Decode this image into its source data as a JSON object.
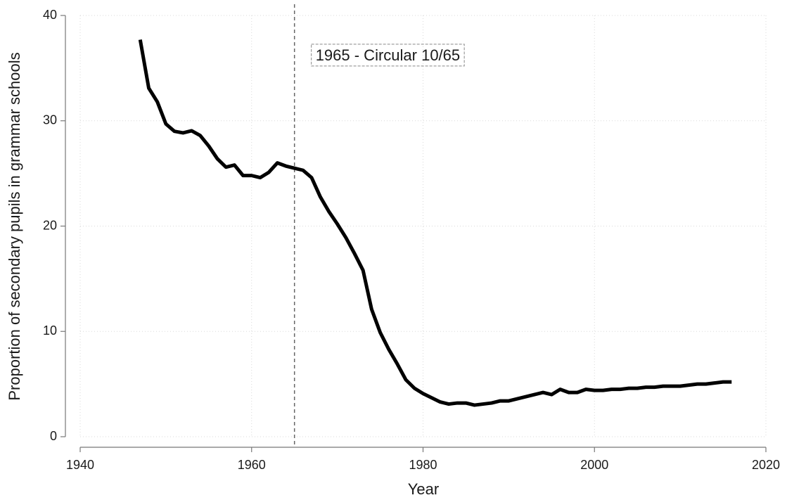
{
  "chart_data": {
    "type": "line",
    "x_label": "Year",
    "y_label": "Proportion of secondary pupils in grammar schools",
    "x": [
      1947,
      1948,
      1949,
      1950,
      1951,
      1952,
      1953,
      1954,
      1955,
      1956,
      1957,
      1958,
      1959,
      1960,
      1961,
      1962,
      1963,
      1964,
      1965,
      1966,
      1967,
      1968,
      1969,
      1970,
      1971,
      1972,
      1973,
      1974,
      1975,
      1976,
      1977,
      1978,
      1979,
      1980,
      1981,
      1982,
      1983,
      1984,
      1985,
      1986,
      1987,
      1988,
      1989,
      1990,
      1991,
      1992,
      1993,
      1994,
      1995,
      1996,
      1997,
      1998,
      1999,
      2000,
      2001,
      2002,
      2003,
      2004,
      2005,
      2006,
      2007,
      2008,
      2009,
      2010,
      2011,
      2012,
      2013,
      2014,
      2015,
      2016
    ],
    "values": [
      37.7,
      33.1,
      31.8,
      29.7,
      29.0,
      28.85,
      29.05,
      28.6,
      27.6,
      26.4,
      25.6,
      25.8,
      24.8,
      24.8,
      24.6,
      25.1,
      26.0,
      25.7,
      25.5,
      25.3,
      24.6,
      22.8,
      21.4,
      20.2,
      18.9,
      17.4,
      15.8,
      12.1,
      9.9,
      8.3,
      6.9,
      5.4,
      4.6,
      4.1,
      3.7,
      3.3,
      3.1,
      3.2,
      3.2,
      3.0,
      3.1,
      3.2,
      3.4,
      3.4,
      3.6,
      3.8,
      4.0,
      4.2,
      4.0,
      4.5,
      4.2,
      4.2,
      4.5,
      4.4,
      4.4,
      4.5,
      4.5,
      4.6,
      4.6,
      4.7,
      4.7,
      4.8,
      4.8,
      4.8,
      4.9,
      5.0,
      5.0,
      5.1,
      5.2,
      5.2
    ],
    "color": "#000000",
    "xlim": [
      1940,
      2020
    ],
    "xticks": [
      1940,
      1960,
      1980,
      2000,
      2020
    ],
    "ylim": [
      0,
      40
    ],
    "yticks": [
      0,
      10,
      20,
      30,
      40
    ],
    "grid": true,
    "vline": {
      "x": 1965,
      "label": "1965 - Circular 10/65"
    }
  }
}
